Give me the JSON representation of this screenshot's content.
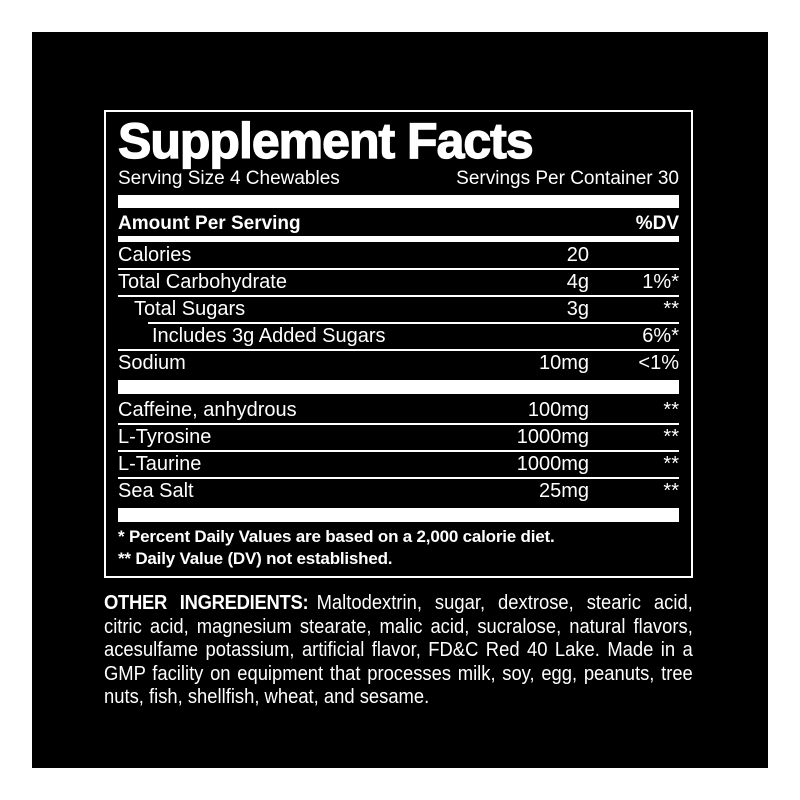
{
  "colors": {
    "page_background": "#ffffff",
    "label_background": "#000000",
    "text": "#ffffff"
  },
  "panel": {
    "title": "Supplement Facts",
    "serving_size": "Serving Size 4 Chewables",
    "servings_per_container": "Servings Per Container 30",
    "header": {
      "amount_label": "Amount Per Serving",
      "dv_label": "%DV"
    },
    "rows": [
      {
        "name": "Calories",
        "amount": "20",
        "dv": ""
      },
      {
        "name": "Total Carbohydrate",
        "amount": "4g",
        "dv": "1%*"
      },
      {
        "name": "Total Sugars",
        "amount": "3g",
        "dv": "**"
      },
      {
        "name": "Includes 3g Added Sugars",
        "amount": "",
        "dv": "6%*"
      },
      {
        "name": "Sodium",
        "amount": "10mg",
        "dv": "<1%"
      }
    ],
    "supplement_rows": [
      {
        "name": "Caffeine, anhydrous",
        "amount": "100mg",
        "dv": "**"
      },
      {
        "name": "L-Tyrosine",
        "amount": "1000mg",
        "dv": "**"
      },
      {
        "name": "L-Taurine",
        "amount": "1000mg",
        "dv": "**"
      },
      {
        "name": "Sea Salt",
        "amount": "25mg",
        "dv": "**"
      }
    ],
    "footnotes": [
      "* Percent Daily Values are based on a 2,000 calorie diet.",
      "** Daily Value (DV) not established."
    ]
  },
  "other_ingredients": {
    "label": "OTHER INGREDIENTS:",
    "text": "Maltodextrin, sugar, dextrose, stearic acid, citric acid, magnesium stearate, malic acid, sucralose, natural flavors, acesulfame potassium, artificial flavor, FD&C Red 40 Lake. Made in a GMP facility on equipment that processes milk, soy, egg, peanuts, tree nuts, fish, shellfish, wheat, and sesame."
  }
}
